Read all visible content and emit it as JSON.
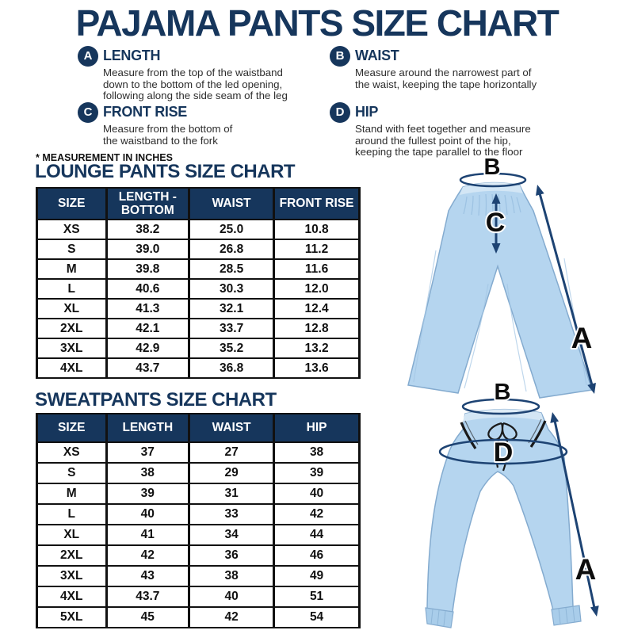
{
  "title": "PAJAMA PANTS SIZE CHART",
  "note": "* MEASUREMENT IN INCHES",
  "definitions": [
    {
      "letter": "A",
      "name": "LENGTH",
      "description": "Measure from the top of the waistband\ndown to the bottom of the led opening,\nfollowing along the side seam of the leg"
    },
    {
      "letter": "B",
      "name": "WAIST",
      "description": "Measure around the narrowest part of\nthe waist, keeping the tape horizontally"
    },
    {
      "letter": "C",
      "name": "FRONT RISE",
      "description": "Measure from the bottom of\nthe waistband to the fork"
    },
    {
      "letter": "D",
      "name": "HIP",
      "description": "Stand with feet together and measure\naround the fullest point of the hip,\nkeeping the tape parallel to the floor"
    }
  ],
  "lounge_chart": {
    "title": "LOUNGE PANTS SIZE CHART",
    "headers": [
      "SIZE",
      "LENGTH -\nBOTTOM",
      "WAIST",
      "FRONT RISE"
    ],
    "rows": [
      [
        "XS",
        "38.2",
        "25.0",
        "10.8"
      ],
      [
        "S",
        "39.0",
        "26.8",
        "11.2"
      ],
      [
        "M",
        "39.8",
        "28.5",
        "11.6"
      ],
      [
        "L",
        "40.6",
        "30.3",
        "12.0"
      ],
      [
        "XL",
        "41.3",
        "32.1",
        "12.4"
      ],
      [
        "2XL",
        "42.1",
        "33.7",
        "12.8"
      ],
      [
        "3XL",
        "42.9",
        "35.2",
        "13.2"
      ],
      [
        "4XL",
        "43.7",
        "36.8",
        "13.6"
      ]
    ]
  },
  "sweat_chart": {
    "title": "SWEATPANTS SIZE CHART",
    "headers": [
      "SIZE",
      "LENGTH",
      "WAIST",
      "HIP"
    ],
    "rows": [
      [
        "XS",
        "37",
        "27",
        "38"
      ],
      [
        "S",
        "38",
        "29",
        "39"
      ],
      [
        "M",
        "39",
        "31",
        "40"
      ],
      [
        "L",
        "40",
        "33",
        "42"
      ],
      [
        "XL",
        "41",
        "34",
        "44"
      ],
      [
        "2XL",
        "42",
        "36",
        "46"
      ],
      [
        "3XL",
        "43",
        "38",
        "49"
      ],
      [
        "4XL",
        "43.7",
        "40",
        "51"
      ],
      [
        "5XL",
        "45",
        "42",
        "54"
      ]
    ]
  },
  "lounge_illustration": {
    "label_a": "A",
    "label_b": "B",
    "label_c": "C"
  },
  "sweat_illustration": {
    "label_a": "A",
    "label_b": "B",
    "label_d": "D"
  },
  "colors": {
    "navy": "#16365c",
    "arrow": "#1d4373",
    "pants_fill": "#b5d5ef",
    "letter": "#0d0d0d"
  }
}
